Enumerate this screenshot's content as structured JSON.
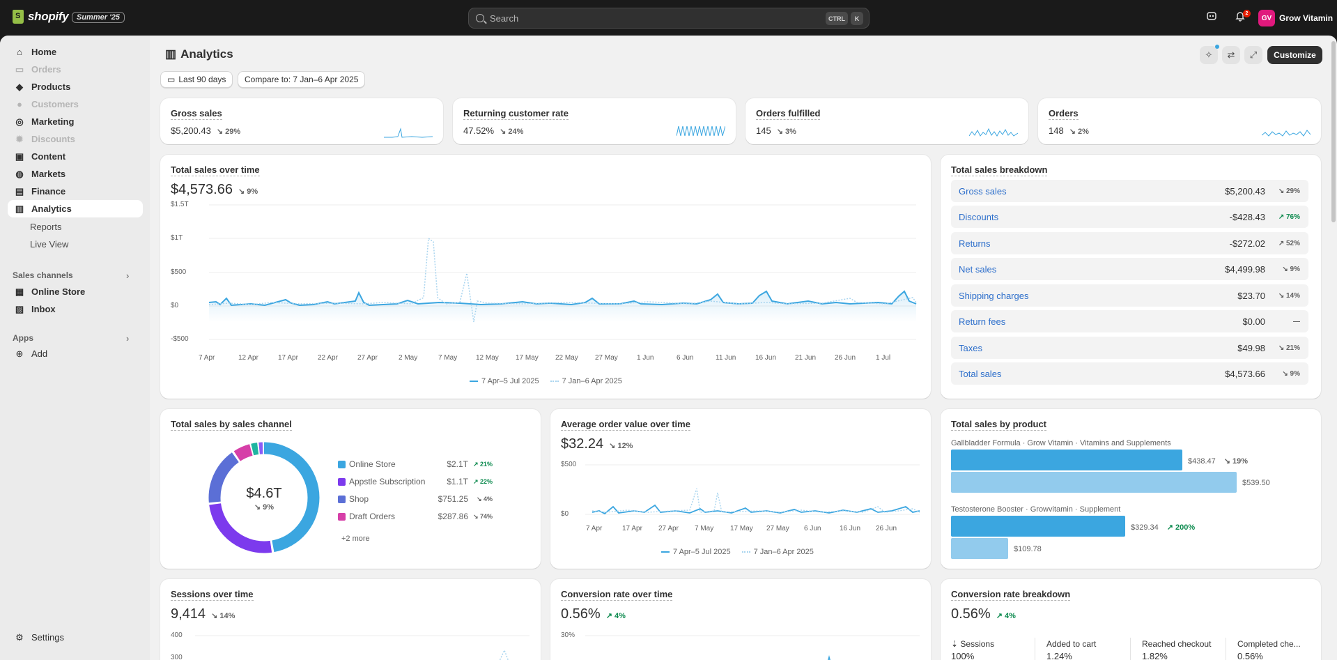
{
  "topbar": {
    "brand": "shopify",
    "edition": "Summer '25",
    "search_placeholder": "Search",
    "shortcut_ctrl": "CTRL",
    "shortcut_k": "K",
    "notifications": "2",
    "avatar_initials": "GV",
    "store_name": "Grow Vitamin"
  },
  "sidebar": {
    "items": [
      {
        "label": "Home",
        "icon": "home-icon"
      },
      {
        "label": "Orders",
        "icon": "orders-icon"
      },
      {
        "label": "Products",
        "icon": "tag-icon"
      },
      {
        "label": "Customers",
        "icon": "person-icon"
      },
      {
        "label": "Marketing",
        "icon": "target-icon"
      },
      {
        "label": "Discounts",
        "icon": "discount-icon"
      },
      {
        "label": "Content",
        "icon": "image-icon"
      },
      {
        "label": "Markets",
        "icon": "globe-icon"
      },
      {
        "label": "Finance",
        "icon": "bank-icon"
      },
      {
        "label": "Analytics",
        "icon": "chart-icon"
      }
    ],
    "sub_items": [
      "Reports",
      "Live View"
    ],
    "sales_channels_label": "Sales channels",
    "channels": [
      "Online Store",
      "Inbox"
    ],
    "apps_label": "Apps",
    "add_label": "Add",
    "settings_label": "Settings"
  },
  "header": {
    "title": "Analytics",
    "date_range": "Last 90 days",
    "compare": "Compare to: 7 Jan–6 Apr 2025",
    "customize": "Customize"
  },
  "metrics": [
    {
      "title": "Gross sales",
      "value": "$5,200.43",
      "delta": "↘ 29%"
    },
    {
      "title": "Returning customer rate",
      "value": "47.52%",
      "delta": "↘ 24%"
    },
    {
      "title": "Orders fulfilled",
      "value": "145",
      "delta": "↘ 3%"
    },
    {
      "title": "Orders",
      "value": "148",
      "delta": "↘ 2%"
    }
  ],
  "total_sales": {
    "title": "Total sales over time",
    "value": "$4,573.66",
    "delta": "↘ 9%",
    "y_ticks": [
      "$1.5T",
      "$1T",
      "$500",
      "$0",
      "-$500"
    ],
    "x_ticks": [
      "7 Apr",
      "12 Apr",
      "17 Apr",
      "22 Apr",
      "27 Apr",
      "2 May",
      "7 May",
      "12 May",
      "17 May",
      "22 May",
      "27 May",
      "1 Jun",
      "6 Jun",
      "11 Jun",
      "16 Jun",
      "21 Jun",
      "26 Jun",
      "1 Jul"
    ],
    "legend_current": "7 Apr–5 Jul 2025",
    "legend_previous": "7 Jan–6 Apr 2025"
  },
  "breakdown": {
    "title": "Total sales breakdown",
    "rows": [
      {
        "label": "Gross sales",
        "value": "$5,200.43",
        "delta": "↘ 29%",
        "up": false
      },
      {
        "label": "Discounts",
        "value": "-$428.43",
        "delta": "↗ 76%",
        "up": true
      },
      {
        "label": "Returns",
        "value": "-$272.02",
        "delta": "↗ 52%",
        "up": false
      },
      {
        "label": "Net sales",
        "value": "$4,499.98",
        "delta": "↘ 9%",
        "up": false
      },
      {
        "label": "Shipping charges",
        "value": "$23.70",
        "delta": "↘ 14%",
        "up": false
      },
      {
        "label": "Return fees",
        "value": "$0.00",
        "delta": "—",
        "up": false
      },
      {
        "label": "Taxes",
        "value": "$49.98",
        "delta": "↘ 21%",
        "up": false
      },
      {
        "label": "Total sales",
        "value": "$4,573.66",
        "delta": "↘ 9%",
        "up": false
      }
    ]
  },
  "channel": {
    "title": "Total sales by sales channel",
    "center_value": "$4.6T",
    "center_delta": "↘ 9%",
    "rows": [
      {
        "label": "Online Store",
        "value": "$2.1T",
        "delta": "↗ 21%",
        "up": true,
        "color": "#3ba6e0"
      },
      {
        "label": "Appstle Subscription",
        "value": "$1.1T",
        "delta": "↗ 22%",
        "up": true,
        "color": "#7c3aed"
      },
      {
        "label": "Shop",
        "value": "$751.25",
        "delta": "↘ 4%",
        "up": false,
        "color": "#5b6fd6"
      },
      {
        "label": "Draft Orders",
        "value": "$287.86",
        "delta": "↘ 74%",
        "up": false,
        "color": "#d63fa8"
      }
    ],
    "more": "+2 more"
  },
  "aov": {
    "title": "Average order value over time",
    "value": "$32.24",
    "delta": "↘ 12%",
    "y_ticks": [
      "$500",
      "$0"
    ],
    "x_ticks": [
      "7 Apr",
      "17 Apr",
      "27 Apr",
      "7 May",
      "17 May",
      "27 May",
      "6 Jun",
      "16 Jun",
      "26 Jun"
    ],
    "legend_current": "7 Apr–5 Jul 2025",
    "legend_previous": "7 Jan–6 Apr 2025"
  },
  "by_product": {
    "title": "Total sales by product",
    "products": [
      {
        "label": "Gallbladder Formula · Grow Vitamin · Vitamins and Supplements",
        "current": "$438.47",
        "delta": "↘ 19%",
        "up": false,
        "previous": "$539.50",
        "current_frac": 0.81,
        "previous_frac": 1.0
      },
      {
        "label": "Testosterone Booster · Growvitamin · Supplement",
        "current": "$329.34",
        "delta": "↗ 200%",
        "up": true,
        "previous": "$109.78",
        "current_frac": 0.61,
        "previous_frac": 0.2
      }
    ]
  },
  "sessions": {
    "title": "Sessions over time",
    "value": "9,414",
    "delta": "↘ 14%",
    "y_ticks": [
      "400",
      "300"
    ]
  },
  "conversion": {
    "title": "Conversion rate over time",
    "value": "0.56%",
    "delta": "↗ 4%",
    "y_ticks": [
      "30%"
    ]
  },
  "conv_breakdown": {
    "title": "Conversion rate breakdown",
    "value": "0.56%",
    "delta": "↗ 4%",
    "cols": [
      {
        "label": "Sessions",
        "value": "100%"
      },
      {
        "label": "Added to cart",
        "value": "1.24%"
      },
      {
        "label": "Reached checkout",
        "value": "1.82%"
      },
      {
        "label": "Completed che...",
        "value": "0.56%"
      }
    ]
  },
  "colors": {
    "accent": "#3ba6e0",
    "previous": "#a8d4ef",
    "positive": "#0c8a4e"
  }
}
